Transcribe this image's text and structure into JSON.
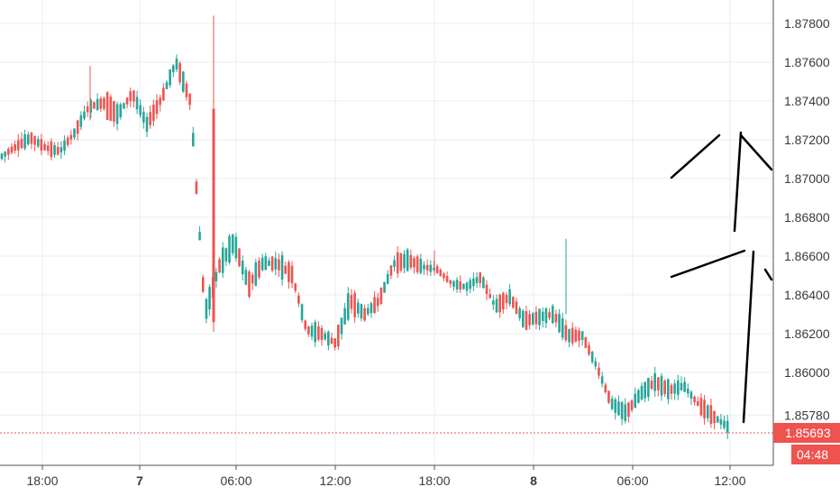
{
  "chart_data": {
    "type": "candlestick",
    "colors": {
      "up": "#26a69a",
      "down": "#ef5350",
      "grid": "#e9ecf1",
      "axis": "#50535e",
      "drawing": "#000000"
    },
    "y_range": [
      1.8545,
      1.8796
    ],
    "y_ticks": [
      "1.85780",
      "1.86000",
      "1.86200",
      "1.86400",
      "1.86600",
      "1.86800",
      "1.87000",
      "1.87200",
      "1.87400",
      "1.87600",
      "1.87800"
    ],
    "x_ticks": [
      {
        "label": "18:00",
        "bold": false
      },
      {
        "label": "7",
        "bold": true
      },
      {
        "label": "06:00",
        "bold": false
      },
      {
        "label": "12:00",
        "bold": false
      },
      {
        "label": "18:00",
        "bold": false
      },
      {
        "label": "8",
        "bold": true
      },
      {
        "label": "06:00",
        "bold": false
      },
      {
        "label": "12:00",
        "bold": false
      }
    ],
    "last_price": "1.85693",
    "countdown": "04:48",
    "anchors": [
      [
        1.871,
        1.8713
      ],
      [
        1.8712,
        1.8721
      ],
      [
        1.8718,
        1.8724
      ],
      [
        1.8713,
        1.8719
      ],
      [
        1.8712,
        1.8716
      ],
      [
        1.872,
        1.8727
      ],
      [
        1.8734,
        1.874
      ],
      [
        1.8733,
        1.8745
      ],
      [
        1.873,
        1.8736
      ],
      [
        1.8741,
        1.8747
      ],
      [
        1.8724,
        1.8732
      ],
      [
        1.8738,
        1.8744
      ],
      [
        1.8756,
        1.8764
      ],
      [
        1.8736,
        1.8744
      ],
      [
        1.8635,
        1.8626
      ],
      [
        1.865,
        1.866
      ],
      [
        1.8663,
        1.8672
      ],
      [
        1.864,
        1.865
      ],
      [
        1.8653,
        1.866
      ],
      [
        1.8651,
        1.8661
      ],
      [
        1.8646,
        1.8655
      ],
      [
        1.8626,
        1.8618
      ],
      [
        1.8617,
        1.8623
      ],
      [
        1.862,
        1.861
      ],
      [
        1.8632,
        1.8642
      ],
      [
        1.8626,
        1.8634
      ],
      [
        1.8633,
        1.8641
      ],
      [
        1.8652,
        1.866
      ],
      [
        1.8655,
        1.8661
      ],
      [
        1.8653,
        1.8656
      ],
      [
        1.8651,
        1.8655
      ],
      [
        1.8644,
        1.8648
      ],
      [
        1.8642,
        1.8646
      ],
      [
        1.8647,
        1.8651
      ],
      [
        1.863,
        1.8638
      ],
      [
        1.8635,
        1.8643
      ],
      [
        1.8623,
        1.863
      ],
      [
        1.8625,
        1.8632
      ],
      [
        1.8626,
        1.8634
      ],
      [
        1.8616,
        1.8622
      ],
      [
        1.8617,
        1.8621
      ],
      [
        1.86,
        1.8606
      ],
      [
        1.858,
        1.8588
      ],
      [
        1.8575,
        1.8583
      ],
      [
        1.8585,
        1.8593
      ],
      [
        1.8591,
        1.8599
      ],
      [
        1.8588,
        1.8594
      ],
      [
        1.859,
        1.8596
      ],
      [
        1.858,
        1.8587
      ],
      [
        1.8575,
        1.858
      ],
      [
        1.8569,
        1.8575
      ]
    ],
    "spikes": [
      {
        "x": 237,
        "high": 1.8784,
        "low": 1.8621
      },
      {
        "x": 628,
        "high": 1.8669,
        "low": 1.863
      },
      {
        "x": 482,
        "high": 1.8663,
        "low": 1.865
      },
      {
        "x": 100,
        "high": 1.8758,
        "low": 1.873
      }
    ],
    "drawings": [
      [
        [
          745,
          197
        ],
        [
          798,
          150
        ]
      ],
      [
        [
          815,
          256
        ],
        [
          822,
          147
        ]
      ],
      [
        [
          822,
          150
        ],
        [
          856,
          188
        ]
      ],
      [
        [
          745,
          307
        ],
        [
          826,
          278
        ]
      ],
      [
        [
          836,
          279
        ],
        [
          825,
          468
        ]
      ],
      [
        [
          849,
          299
        ],
        [
          856,
          310
        ]
      ]
    ]
  }
}
